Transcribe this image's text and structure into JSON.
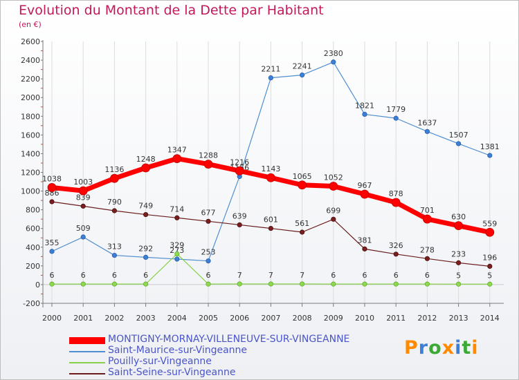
{
  "chart_data": {
    "type": "line",
    "title": "Evolution du Montant de la Dette par Habitant",
    "subtitle": "(en €)",
    "categories": [
      "2000",
      "2001",
      "2002",
      "2003",
      "2004",
      "2005",
      "2006",
      "2007",
      "2008",
      "2009",
      "2010",
      "2011",
      "2012",
      "2013",
      "2014"
    ],
    "ylim": [
      -200,
      2600
    ],
    "yticks": [
      -200,
      0,
      200,
      400,
      600,
      800,
      1000,
      1200,
      1400,
      1600,
      1800,
      2000,
      2200,
      2400,
      2600
    ],
    "grid": "vertical",
    "legend_position": "bottom",
    "series": [
      {
        "name": "MONTIGNY-MORNAY-VILLENEUVE-SUR-VINGEANNE",
        "color": "#ff0000",
        "values": [
          1038,
          1003,
          1136,
          1248,
          1347,
          1288,
          1216,
          1143,
          1065,
          1052,
          967,
          878,
          701,
          630,
          559
        ]
      },
      {
        "name": "Saint-Maurice-sur-Vingeanne",
        "color": "#4e8ed0",
        "values": [
          355,
          509,
          313,
          292,
          273,
          253,
          1156,
          2211,
          2241,
          2380,
          1821,
          1779,
          1637,
          1507,
          1381
        ]
      },
      {
        "name": "Pouilly-sur-Vingeanne",
        "color": "#88d04a",
        "values": [
          6,
          6,
          6,
          6,
          329,
          6,
          7,
          7,
          7,
          6,
          6,
          6,
          6,
          5,
          5
        ]
      },
      {
        "name": "Saint-Seine-sur-Vingeanne",
        "color": "#6a1b1b",
        "values": [
          886,
          839,
          790,
          749,
          714,
          677,
          639,
          601,
          561,
          699,
          381,
          326,
          278,
          233,
          196
        ]
      }
    ]
  },
  "logo": {
    "text": "Proxiti",
    "colors": [
      "#ff8a00",
      "#3d7fd6",
      "#3aaa35",
      "#ff8a00",
      "#3d7fd6",
      "#3aaa35",
      "#ff8a00"
    ]
  }
}
